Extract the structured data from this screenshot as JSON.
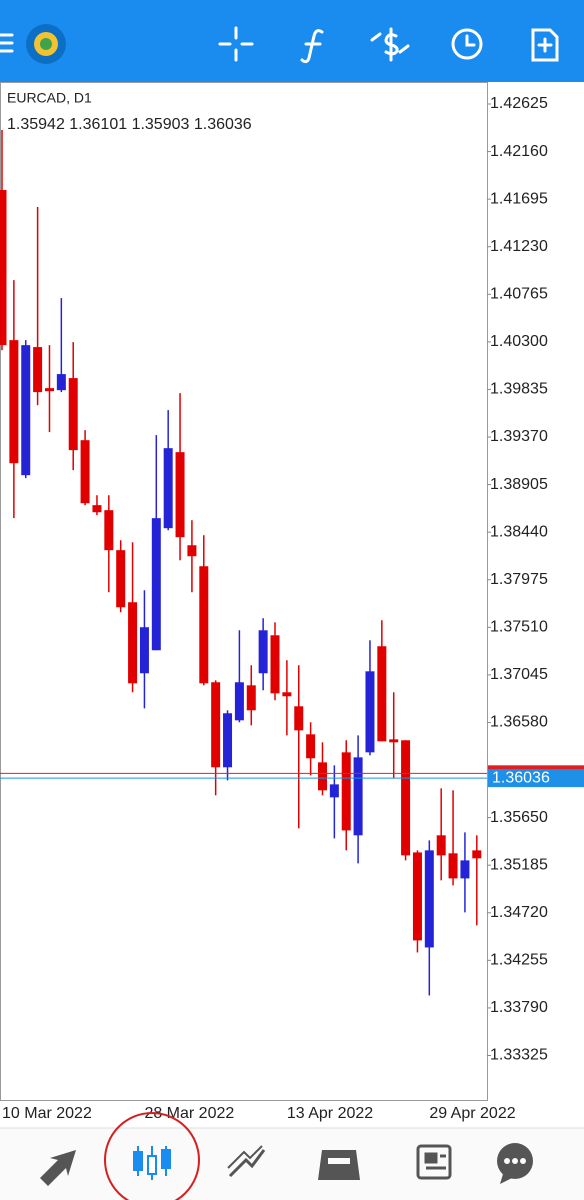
{
  "chart_data": {
    "type": "candlestick",
    "symbol": "EURCAD, D1",
    "ohlc_label": "1.35942 1.36101 1.35903 1.36036",
    "categories": [
      "10 Mar 2022",
      null,
      null,
      null,
      null,
      null,
      null,
      null,
      null,
      null,
      null,
      null,
      "28 Mar 2022",
      null,
      null,
      null,
      null,
      null,
      null,
      null,
      null,
      null,
      null,
      null,
      "13 Apr 2022",
      null,
      null,
      null,
      null,
      null,
      null,
      null,
      null,
      null,
      null,
      null,
      "29 Apr 2022",
      null,
      null,
      null,
      null
    ],
    "open": [
      1.41784,
      1.40317,
      1.38997,
      1.40249,
      1.39848,
      1.39828,
      1.39946,
      1.39339,
      1.38704,
      1.38655,
      1.38264,
      1.37755,
      1.37061,
      1.37286,
      1.38479,
      1.39222,
      1.38312,
      1.38107,
      1.36973,
      1.36142,
      1.36601,
      1.36943,
      1.37061,
      1.37432,
      1.36875,
      1.36738,
      1.36464,
      1.3619,
      1.35848,
      1.36288,
      1.35477,
      1.36288,
      1.37325,
      1.36415,
      1.36406,
      1.3531,
      1.34381,
      1.35477,
      1.35301,
      1.35056,
      1.3533
    ],
    "high": [
      1.42371,
      1.40904,
      1.40317,
      1.41618,
      1.40268,
      1.40728,
      1.40298,
      1.39437,
      1.38801,
      1.38801,
      1.38361,
      1.38342,
      1.37872,
      1.39388,
      1.39633,
      1.39799,
      1.38557,
      1.3841,
      1.36992,
      1.36699,
      1.37481,
      1.37139,
      1.37599,
      1.37559,
      1.37188,
      1.37139,
      1.36582,
      1.36386,
      1.36161,
      1.36406,
      1.36454,
      1.37383,
      1.37579,
      1.36875,
      1.36406,
      1.3533,
      1.35428,
      1.35936,
      1.35917,
      1.35506,
      1.35477
    ],
    "low": [
      1.40219,
      1.38577,
      1.38968,
      1.39682,
      1.39418,
      1.39809,
      1.39046,
      1.38704,
      1.38606,
      1.37853,
      1.37657,
      1.36875,
      1.36718,
      1.37286,
      1.38459,
      1.38166,
      1.37853,
      1.36943,
      1.35868,
      1.36014,
      1.36582,
      1.36552,
      1.36895,
      1.36797,
      1.36454,
      1.35545,
      1.36063,
      1.35868,
      1.35447,
      1.3533,
      1.35203,
      1.36259,
      1.36396,
      1.36034,
      1.35232,
      1.34332,
      1.33912,
      1.35037,
      1.34988,
      1.34724,
      1.34597
    ],
    "close": [
      1.40268,
      1.39114,
      1.40268,
      1.39809,
      1.39818,
      1.39985,
      1.39242,
      1.38723,
      1.38635,
      1.38264,
      1.37706,
      1.36963,
      1.37511,
      1.38577,
      1.39261,
      1.38391,
      1.38205,
      1.36963,
      1.36142,
      1.3667,
      1.36973,
      1.36699,
      1.37481,
      1.36865,
      1.36836,
      1.36503,
      1.3623,
      1.35917,
      1.35975,
      1.35525,
      1.36239,
      1.3708,
      1.36396,
      1.36386,
      1.35281,
      1.3445,
      1.3533,
      1.35281,
      1.35056,
      1.35232,
      1.35252
    ],
    "up_color": "#2424d6",
    "down_color": "#e00000",
    "ylim": [
      1.3289,
      1.4284
    ],
    "yticks": [
      1.42625,
      {
        "value": 1.4216,
        "label": "1.42160"
      },
      1.41695,
      {
        "value": 1.4123,
        "label": "1.41230"
      },
      1.40765,
      {
        "value": 1.403,
        "label": "1.40300"
      },
      1.39835,
      {
        "value": 1.3937,
        "label": "1.39370"
      },
      1.38905,
      {
        "value": 1.3844,
        "label": "1.38440"
      },
      1.37975,
      {
        "value": 1.3751,
        "label": "1.37510"
      },
      1.37045,
      {
        "value": 1.3658,
        "label": "1.36580"
      },
      {
        "value": 1.3565,
        "label": "1.35650"
      },
      1.35185,
      {
        "value": 1.3472,
        "label": "1.34720"
      },
      1.34255,
      {
        "value": 1.3379,
        "label": "1.33790"
      },
      1.33325
    ],
    "bid": 1.36036,
    "bid_color": "#1e90e8",
    "ask": 1.36083,
    "ask_color": "#e02020"
  }
}
